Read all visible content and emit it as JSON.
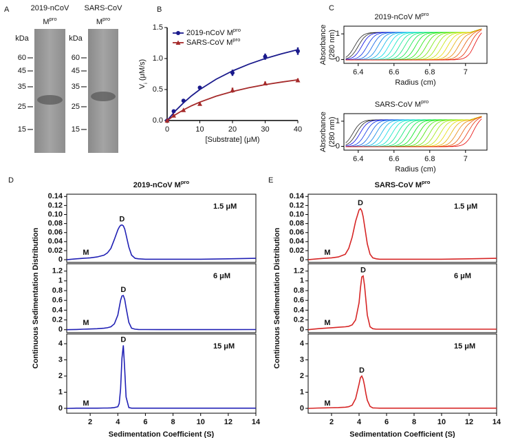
{
  "gels": {
    "label": "A",
    "lanes": [
      {
        "title": "2019-nCoV",
        "title2": "M",
        "title2_sup": "pro",
        "unit": "kDa",
        "markers": [
          60,
          45,
          35,
          25,
          15
        ]
      },
      {
        "title": "SARS-CoV",
        "title2": "M",
        "title2_sup": "pro",
        "unit": "kDa",
        "markers": [
          60,
          45,
          35,
          25,
          15
        ]
      }
    ]
  },
  "chart_data": [
    {
      "type": "scatter",
      "panel": "B",
      "x": [
        0,
        2,
        5,
        10,
        20,
        30,
        40
      ],
      "series": [
        {
          "name": "2019-nCoV M",
          "name_sup": "pro",
          "color": "#1a1a8c",
          "marker": "circle",
          "values": [
            0,
            0.15,
            0.32,
            0.53,
            0.77,
            1.03,
            1.12
          ],
          "errors": [
            0,
            0.01,
            0.02,
            0.02,
            0.05,
            0.05,
            0.06
          ],
          "fit_x": [
            0,
            2.5,
            5,
            7.5,
            10,
            15,
            20,
            25,
            30,
            35,
            40
          ],
          "fit": [
            0,
            0.154,
            0.286,
            0.4,
            0.5,
            0.667,
            0.8,
            0.909,
            1.0,
            1.077,
            1.143
          ]
        },
        {
          "name": "SARS-CoV M",
          "name_sup": "pro",
          "color": "#a52a2a",
          "marker": "triangle",
          "values": [
            0,
            0.08,
            0.17,
            0.27,
            0.49,
            0.6,
            0.65
          ],
          "errors": [
            0,
            0.01,
            0.01,
            0.02,
            0.04,
            0.03,
            0.03
          ],
          "fit_x": [
            0,
            2.5,
            5,
            7.5,
            10,
            15,
            20,
            25,
            30,
            35,
            40
          ],
          "fit": [
            0,
            0.093,
            0.172,
            0.239,
            0.297,
            0.393,
            0.468,
            0.529,
            0.579,
            0.62,
            0.657
          ]
        }
      ],
      "xlim": [
        0,
        40
      ],
      "xticks": [
        0,
        10,
        20,
        30,
        40
      ],
      "ylim": [
        0,
        1.5
      ],
      "yticks": [
        {
          "value": 0,
          "label": "0.0"
        },
        0.5,
        {
          "value": 1,
          "label": "1.0"
        },
        1.5
      ],
      "xlabel": "[Substrate] (μM)",
      "ylabel": "V",
      "ylabel_sub": "i",
      "ylabel_rest": "(μM/s)",
      "legend": "upper left"
    },
    {
      "type": "scans",
      "panel": "C",
      "title": "2019-nCoV M",
      "title_sup": "pro",
      "ylabel": "Absorbance",
      "ylabel2": "(280 nm)",
      "xlabel": "Radius (cm)",
      "xlim": [
        6.32,
        7.12
      ],
      "xticks": [
        6.4,
        6.6,
        6.8,
        7
      ],
      "ylim": [
        -0.15,
        1.3
      ],
      "yticks": [
        0,
        1
      ],
      "colormap": "rainbow",
      "boundaries": [
        6.38,
        6.4,
        6.42,
        6.45,
        6.48,
        6.51,
        6.54,
        6.57,
        6.6,
        6.63,
        6.66,
        6.69,
        6.72,
        6.75,
        6.78,
        6.81,
        6.84,
        6.87,
        6.9,
        6.93,
        6.96,
        6.99,
        7.02,
        7.05
      ]
    },
    {
      "type": "scans",
      "title": "SARS-CoV M",
      "title_sup": "pro",
      "ylabel": "Absorbance",
      "ylabel2": "(280 nm)",
      "xlabel": "Radius (cm)",
      "xlim": [
        6.32,
        7.12
      ],
      "xticks": [
        6.4,
        6.6,
        6.8,
        7
      ],
      "ylim": [
        -0.15,
        1.3
      ],
      "yticks": [
        0,
        1
      ],
      "colormap": "rainbow",
      "boundaries": [
        6.37,
        6.39,
        6.41,
        6.44,
        6.47,
        6.5,
        6.53,
        6.56,
        6.59,
        6.62,
        6.65,
        6.68,
        6.71,
        6.74,
        6.77,
        6.8,
        6.83,
        6.86,
        6.89,
        6.92,
        6.95,
        6.98,
        7.01,
        7.04
      ]
    },
    {
      "type": "line",
      "panel": "D",
      "title": "2019-nCoV M",
      "title_sup": "pro",
      "color": "#1f1fb4",
      "x": [
        0.3,
        1,
        1.5,
        2,
        2.5,
        3,
        3.25,
        3.5,
        3.75,
        4,
        4.1,
        4.2,
        4.3,
        4.4,
        4.5,
        4.6,
        4.8,
        5,
        5.25,
        5.5,
        6,
        7,
        8,
        10,
        12,
        14
      ],
      "values": [
        0,
        0.002,
        0.003,
        0.004,
        0.006,
        0.01,
        0.015,
        0.025,
        0.045,
        0.066,
        0.072,
        0.076,
        0.077,
        0.075,
        0.068,
        0.055,
        0.028,
        0.01,
        0.003,
        0.002,
        0.001,
        0.001,
        0.001,
        0.001,
        0.002,
        0.003
      ],
      "xlim": [
        0.3,
        14
      ],
      "ylim": [
        -0.006,
        0.145
      ],
      "yticks": [
        0,
        0.02,
        0.04,
        0.06,
        0.08,
        {
          "value": 0.1,
          "label": "0.10"
        },
        0.12,
        0.14
      ],
      "concentration": "1.5 μM",
      "peak_labels": [
        "M",
        "D"
      ]
    },
    {
      "type": "line",
      "color": "#1f1fb4",
      "x": [
        0.3,
        1,
        1.5,
        2,
        2.5,
        3,
        3.25,
        3.5,
        3.75,
        4,
        4.1,
        4.2,
        4.3,
        4.4,
        4.5,
        4.6,
        4.8,
        5,
        5.25,
        5.5,
        6,
        7,
        8,
        10,
        12,
        14
      ],
      "values": [
        0,
        0.005,
        0.01,
        0.015,
        0.02,
        0.03,
        0.04,
        0.06,
        0.12,
        0.3,
        0.45,
        0.6,
        0.69,
        0.7,
        0.62,
        0.45,
        0.15,
        0.03,
        0.01,
        0.005,
        0.003,
        0.002,
        0.002,
        0.002,
        0.002,
        0.003
      ],
      "xlim": [
        0.3,
        14
      ],
      "ylim": [
        -0.06,
        1.35
      ],
      "yticks": [
        0,
        0.2,
        0.4,
        0.6,
        0.8,
        1,
        1.2
      ],
      "ylabel": "Continuous Sedimentation Distribution",
      "concentration": "6 μM",
      "peak_labels": [
        "M",
        "D"
      ]
    },
    {
      "type": "line",
      "color": "#1f1fb4",
      "x": [
        0.3,
        1,
        1.5,
        2,
        2.5,
        3,
        3.25,
        3.5,
        3.75,
        4,
        4.1,
        4.2,
        4.3,
        4.4,
        4.5,
        4.6,
        4.8,
        5,
        5.25,
        5.5,
        6,
        7,
        8,
        10,
        12,
        14
      ],
      "values": [
        0,
        0.01,
        0.01,
        0.01,
        0.01,
        0.02,
        0.02,
        0.03,
        0.05,
        0.1,
        0.3,
        1.2,
        3.1,
        3.9,
        2.4,
        0.7,
        0.05,
        0.01,
        0.01,
        0.01,
        0.01,
        0.01,
        0.01,
        0.01,
        0.01,
        0.01
      ],
      "xlim": [
        0.3,
        14
      ],
      "ylim": [
        -0.3,
        4.6
      ],
      "yticks": [
        0,
        1,
        2,
        3,
        4
      ],
      "xticks": [
        2,
        4,
        6,
        8,
        10,
        12,
        14
      ],
      "xlabel": "Sedimentation Coefficient (S)",
      "concentration": "15 μM",
      "peak_labels": [
        "M",
        "D"
      ]
    },
    {
      "type": "line",
      "panel": "E",
      "title": "SARS-CoV M",
      "title_sup": "pro",
      "color": "#d62424",
      "x": [
        0.3,
        1,
        1.5,
        2,
        2.5,
        3,
        3.25,
        3.5,
        3.75,
        4,
        4.1,
        4.2,
        4.3,
        4.4,
        4.5,
        4.6,
        4.8,
        5,
        5.25,
        5.5,
        6,
        7,
        8,
        10,
        12,
        14
      ],
      "values": [
        0,
        0.002,
        0.003,
        0.004,
        0.006,
        0.012,
        0.025,
        0.05,
        0.085,
        0.11,
        0.113,
        0.108,
        0.095,
        0.075,
        0.055,
        0.035,
        0.012,
        0.004,
        0.002,
        0.001,
        0.001,
        0.001,
        0.001,
        0.001,
        0.002,
        0.003
      ],
      "xlim": [
        0.3,
        14
      ],
      "ylim": [
        -0.006,
        0.145
      ],
      "yticks": [
        0,
        0.02,
        0.04,
        0.06,
        0.08,
        {
          "value": 0.1,
          "label": "0.10"
        },
        0.12,
        0.14
      ],
      "concentration": "1.5 μM",
      "peak_labels": [
        "M",
        "D"
      ]
    },
    {
      "type": "line",
      "color": "#d62424",
      "x": [
        0.3,
        1,
        1.5,
        2,
        2.5,
        3,
        3.25,
        3.5,
        3.75,
        4,
        4.1,
        4.2,
        4.3,
        4.4,
        4.5,
        4.6,
        4.8,
        5,
        5.25,
        5.5,
        6,
        7,
        8,
        10,
        12,
        14
      ],
      "values": [
        0,
        0.02,
        0.03,
        0.04,
        0.05,
        0.06,
        0.07,
        0.1,
        0.2,
        0.55,
        0.85,
        1.08,
        1.1,
        0.9,
        0.6,
        0.3,
        0.06,
        0.02,
        0.01,
        0.01,
        0.01,
        0.01,
        0.01,
        0.01,
        0.01,
        0.01
      ],
      "xlim": [
        0.3,
        14
      ],
      "ylim": [
        -0.06,
        1.35
      ],
      "yticks": [
        0,
        0.2,
        0.4,
        0.6,
        0.8,
        1,
        1.2
      ],
      "ylabel": "Continuous Sedimentation Distribution",
      "concentration": "6 μM",
      "peak_labels": [
        "M",
        "D"
      ]
    },
    {
      "type": "line",
      "color": "#d62424",
      "x": [
        0.3,
        1,
        1.5,
        2,
        2.5,
        3,
        3.25,
        3.5,
        3.75,
        4,
        4.1,
        4.2,
        4.3,
        4.4,
        4.5,
        4.6,
        4.8,
        5,
        5.25,
        5.5,
        6,
        7,
        8,
        10,
        12,
        14
      ],
      "values": [
        0,
        0.02,
        0.03,
        0.04,
        0.05,
        0.07,
        0.1,
        0.2,
        0.6,
        1.5,
        1.9,
        2.0,
        1.8,
        1.4,
        0.9,
        0.5,
        0.12,
        0.03,
        0.02,
        0.01,
        0.01,
        0.01,
        0.01,
        0.01,
        0.01,
        0.01
      ],
      "xlim": [
        0.3,
        14
      ],
      "ylim": [
        -0.3,
        4.6
      ],
      "yticks": [
        0,
        1,
        2,
        3,
        4
      ],
      "xticks": [
        2,
        4,
        6,
        8,
        10,
        12,
        14
      ],
      "xlabel": "Sedimentation Coefficient (S)",
      "concentration": "15 μM",
      "peak_labels": [
        "M",
        "D"
      ]
    }
  ]
}
